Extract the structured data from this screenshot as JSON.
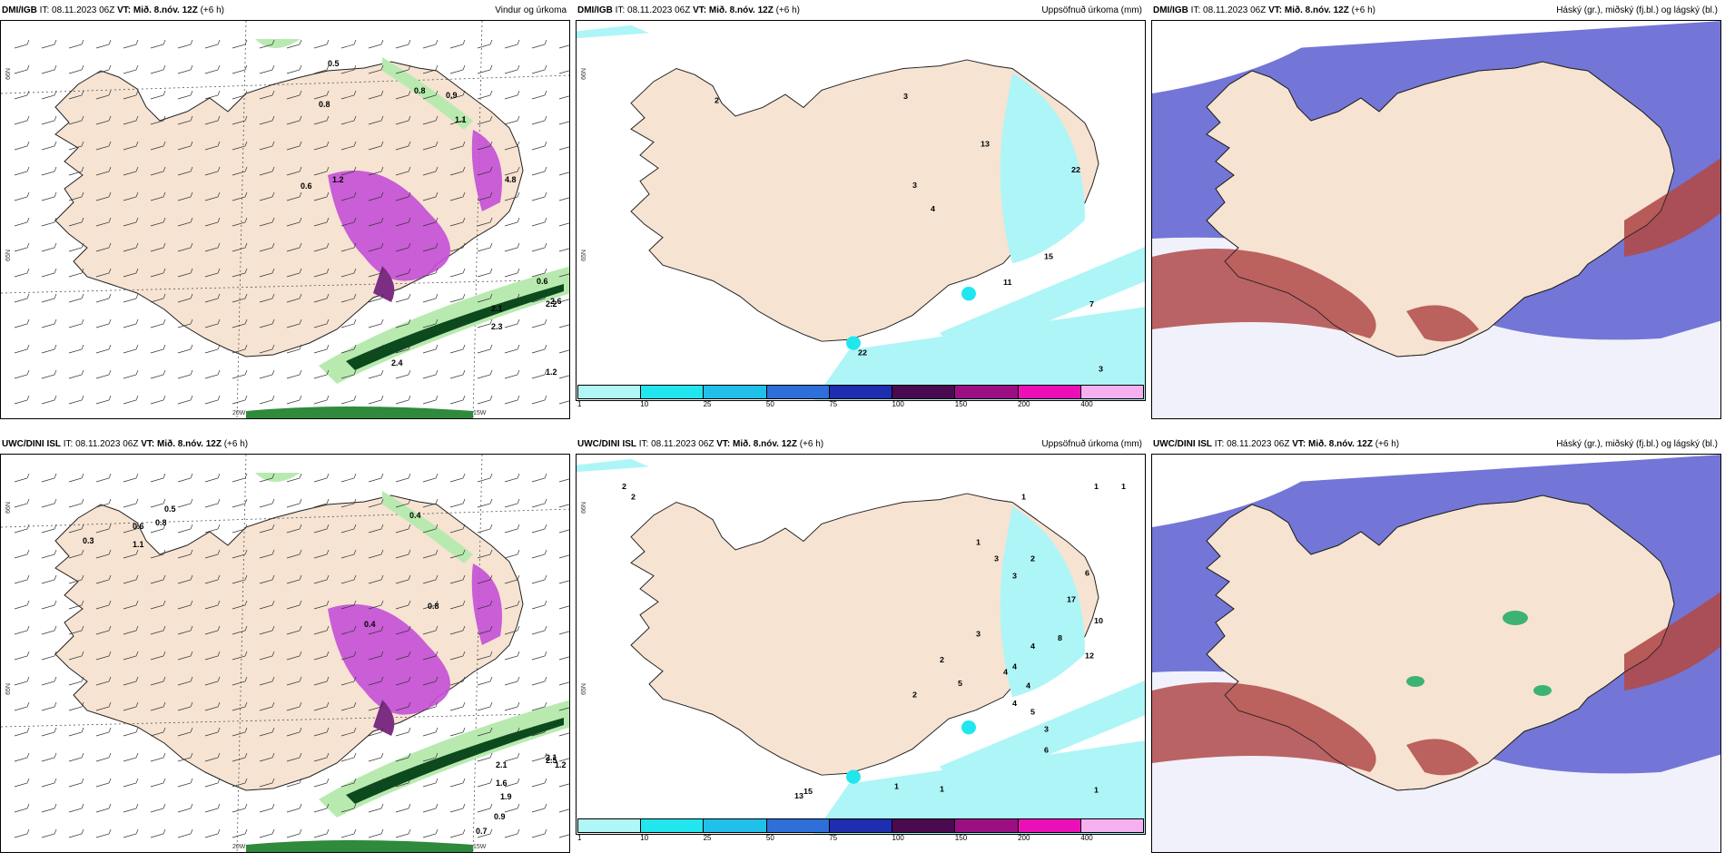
{
  "colors": {
    "land": "#f6e3d2",
    "land_hatch": "#eddccc",
    "sea": "#ffffff",
    "precip_light": "#aef5f7",
    "precip_mid": "#22e6ee",
    "precip_magenta": "#c44fd6",
    "precip_purple": "#7b2e82",
    "wind_green_light": "#b8eab0",
    "wind_green": "#2f8a3c",
    "wind_green_dark": "#0c4a1d",
    "cloud_high": "#5a5ecf",
    "cloud_mid": "#b04a4a",
    "cloud_low": "#3cb371",
    "scale": [
      "#b0f6f7",
      "#22e6ee",
      "#20c0ea",
      "#2e6fd9",
      "#1f2db0",
      "#4a0a4f",
      "#9c0f82",
      "#ec0fb8",
      "#f7b0ef"
    ]
  },
  "scale_labels": [
    "1",
    "10",
    "25",
    "50",
    "75",
    "100",
    "150",
    "200",
    "400"
  ],
  "panels": [
    {
      "model": "DMI/IGB",
      "it_label": "IT:",
      "it_value": "08.11.2023 06Z",
      "vt_label": "VT: Mið. 8.nóv. 12Z",
      "lead": "(+6 h)",
      "right_title": "Vindur og úrkoma",
      "type": "wind",
      "lat_labels": [
        "66N",
        "65N",
        "25W"
      ],
      "lon_labels": [
        "20W",
        "15W"
      ],
      "numbers": [
        "0.5",
        "0.8",
        "0.9",
        "1.1",
        "0.8",
        "1.2",
        "0.6",
        "2.1",
        "2.2",
        "2.4",
        "1.2",
        "2.2",
        "0.6",
        "2.6",
        "2.3",
        "4.8"
      ]
    },
    {
      "model": "DMI/IGB",
      "it_label": "IT:",
      "it_value": "08.11.2023 06Z",
      "vt_label": "VT: Mið. 8.nóv. 12Z",
      "lead": "(+6 h)",
      "right_title": "Uppsöfnuð úrkoma (mm)",
      "type": "accum",
      "lat_labels": [
        "66N",
        "65N"
      ],
      "lon_labels": [],
      "numbers": [
        "2",
        "3",
        "13",
        "22",
        "3",
        "4",
        "15",
        "11",
        "7",
        "3",
        "22"
      ]
    },
    {
      "model": "DMI/IGB",
      "it_label": "IT:",
      "it_value": "08.11.2023 06Z",
      "vt_label": "VT: Mið. 8.nóv. 12Z",
      "lead": "(+6 h)",
      "right_title": "Háský (gr.), miðský (fj.bl.) og lágský (bl.)",
      "type": "cloud",
      "lat_labels": [],
      "lon_labels": [],
      "numbers": []
    },
    {
      "model": "UWC/DINI ISL",
      "it_label": "IT:",
      "it_value": "08.11.2023 06Z",
      "vt_label": "VT: Mið. 8.nóv. 12Z",
      "lead": "(+6 h)",
      "right_title": "",
      "type": "wind",
      "lat_labels": [
        "66N",
        "65N",
        "25W"
      ],
      "lon_labels": [
        "20W",
        "15W"
      ],
      "numbers": [
        "0.5",
        "0.8",
        "0.3",
        "1.1",
        "0.6",
        "0.8",
        "0.4",
        "0.4",
        "2.1",
        "2.5",
        "1.2",
        "2.1",
        "1.6",
        "1.9",
        "0.7",
        "0.9"
      ]
    },
    {
      "model": "UWC/DINI ISL",
      "it_label": "IT:",
      "it_value": "08.11.2023 06Z",
      "vt_label": "VT: Mið. 8.nóv. 12Z",
      "lead": "(+6 h)",
      "right_title": "Uppsöfnuð úrkoma (mm)",
      "type": "accum",
      "lat_labels": [
        "66N",
        "65N"
      ],
      "lon_labels": [],
      "numbers": [
        "2",
        "2",
        "1",
        "1",
        "1",
        "1",
        "3",
        "3",
        "2",
        "6",
        "17",
        "10",
        "12",
        "8",
        "4",
        "4",
        "4",
        "4",
        "5",
        "3",
        "6",
        "1",
        "1",
        "1",
        "13",
        "15",
        "2",
        "2",
        "3",
        "5",
        "4"
      ]
    },
    {
      "model": "UWC/DINI ISL",
      "it_label": "IT:",
      "it_value": "08.11.2023 06Z",
      "vt_label": "VT: Mið. 8.nóv. 12Z",
      "lead": "(+6 h)",
      "right_title": "Háský (gr.), miðský (fj.bl.) og lágský (bl.)",
      "type": "cloud",
      "lat_labels": [],
      "lon_labels": [],
      "numbers": []
    }
  ]
}
